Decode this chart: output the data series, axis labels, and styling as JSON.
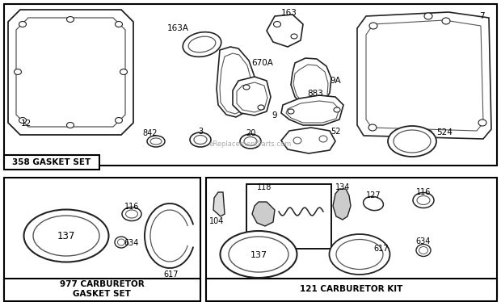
{
  "bg_color": "#ffffff",
  "box1_label": "358 GASKET SET",
  "box2_label": "977 CARBURETOR\nGASKET SET",
  "box3_label": "121 CARBURETOR KIT",
  "watermark": "eReplacementParts.com",
  "lc": "#222222",
  "lc2": "#555555"
}
